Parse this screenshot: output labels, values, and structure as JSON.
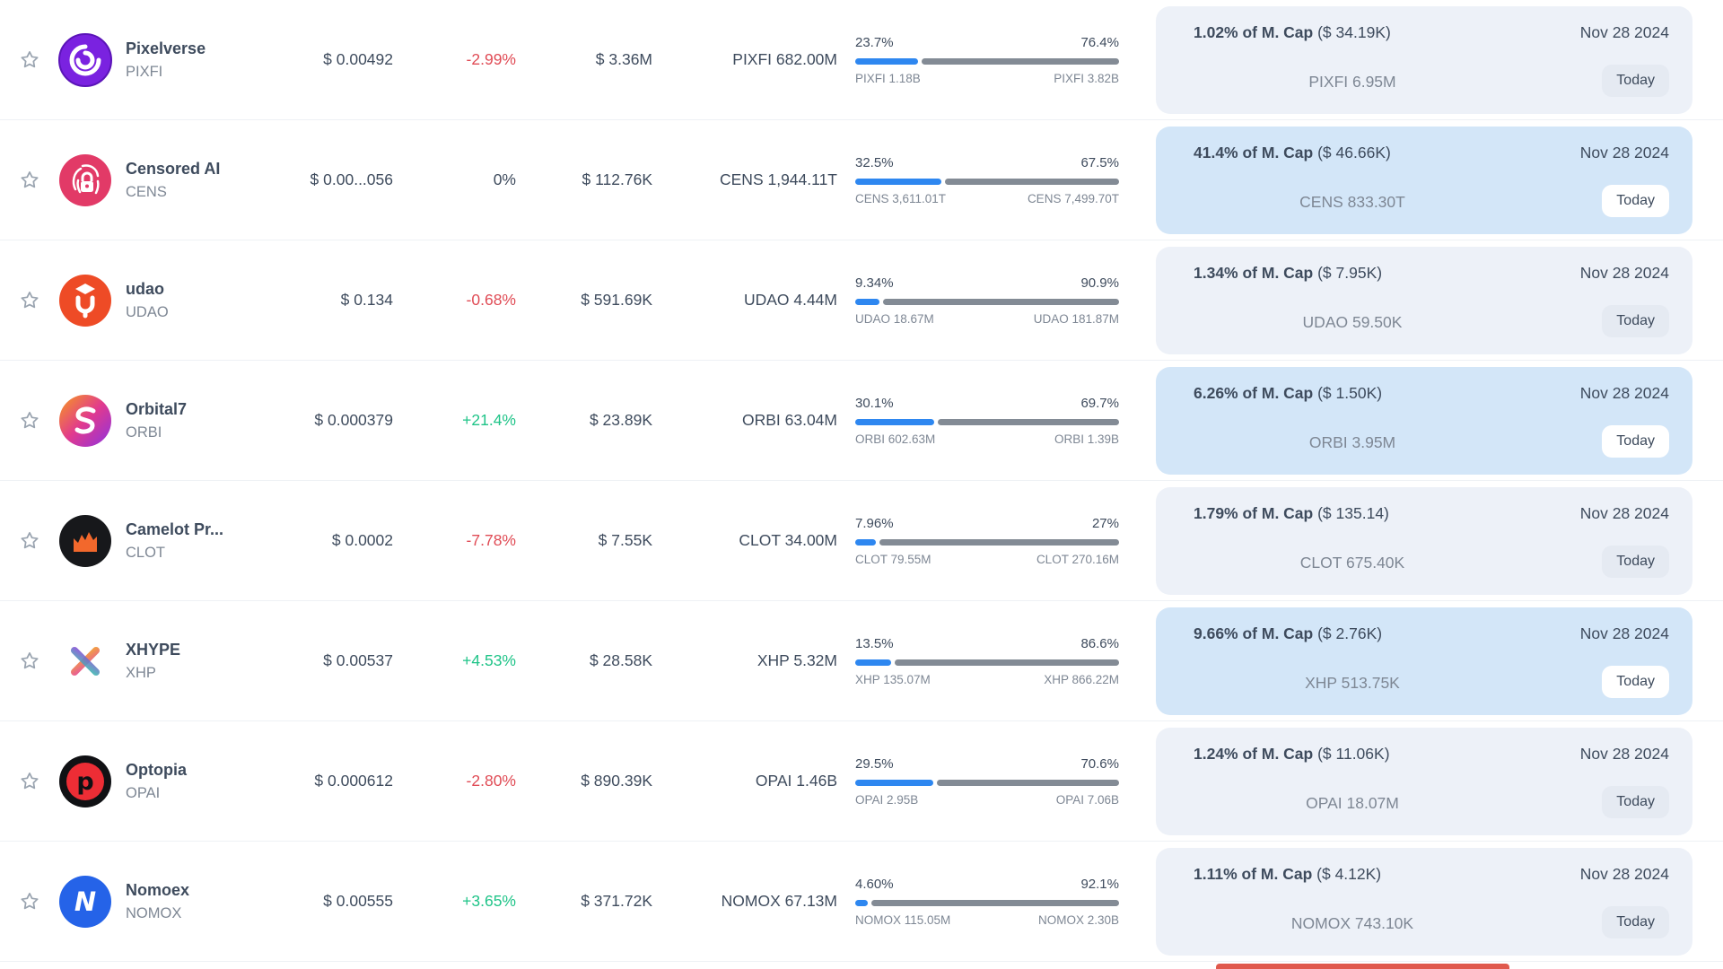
{
  "colors": {
    "accent_blue": "#2e87f0",
    "bar_grey": "#838b95",
    "positive": "#1fc488",
    "negative": "#e04b55",
    "neutral_text": "#3e4b5d",
    "secondary_text": "#7e8794",
    "highlight_light": "#edf1f8",
    "highlight_blue": "#d3e6f8",
    "badge_light": "#e5eaf2",
    "badge_on_blue": "#ffffff",
    "row_border": "#eef1f5",
    "clipped_red": "#e0594d"
  },
  "icons": {
    "star": "star-icon",
    "logos": [
      "pixelverse-spiral-icon",
      "censored-fingerprint-lock-icon",
      "udao-graduation-icon",
      "orbital7-swirl-icon",
      "camelot-castle-icon",
      "xhype-x-icon",
      "optopia-p-icon",
      "nomoex-n-icon"
    ]
  },
  "rows": [
    {
      "name": "Pixelverse",
      "symbol": "PIXFI",
      "logo": "pixelverse",
      "price": "$ 0.00492",
      "change": "-2.99%",
      "change_dir": "down",
      "volume": "$ 3.36M",
      "amount": "PIXFI 682.00M",
      "bar": {
        "left_pct": "23.7%",
        "right_pct": "76.4%",
        "left_label": "PIXFI 1.18B",
        "right_label": "PIXFI 3.82B",
        "fill": 23.7
      },
      "mcap": {
        "bold": "1.02% of M. Cap",
        "paren": "($ 34.19K)",
        "amount": "PIXFI 6.95M"
      },
      "date": "Nov 28 2024",
      "badge": "Today",
      "highlighted": false
    },
    {
      "name": "Censored AI",
      "symbol": "CENS",
      "logo": "censored",
      "price": "$ 0.00...056",
      "change": "0%",
      "change_dir": "flat",
      "volume": "$ 112.76K",
      "amount": "CENS 1,944.11T",
      "bar": {
        "left_pct": "32.5%",
        "right_pct": "67.5%",
        "left_label": "CENS 3,611.01T",
        "right_label": "CENS 7,499.70T",
        "fill": 32.5
      },
      "mcap": {
        "bold": "41.4% of M. Cap",
        "paren": "($ 46.66K)",
        "amount": "CENS 833.30T"
      },
      "date": "Nov 28 2024",
      "badge": "Today",
      "highlighted": true
    },
    {
      "name": "udao",
      "symbol": "UDAO",
      "logo": "udao",
      "price": "$ 0.134",
      "change": "-0.68%",
      "change_dir": "down",
      "volume": "$ 591.69K",
      "amount": "UDAO 4.44M",
      "bar": {
        "left_pct": "9.34%",
        "right_pct": "90.9%",
        "left_label": "UDAO 18.67M",
        "right_label": "UDAO 181.87M",
        "fill": 9.34
      },
      "mcap": {
        "bold": "1.34% of M. Cap",
        "paren": "($ 7.95K)",
        "amount": "UDAO 59.50K"
      },
      "date": "Nov 28 2024",
      "badge": "Today",
      "highlighted": false
    },
    {
      "name": "Orbital7",
      "symbol": "ORBI",
      "logo": "orbital7",
      "price": "$ 0.000379",
      "change": "+21.4%",
      "change_dir": "up",
      "volume": "$ 23.89K",
      "amount": "ORBI 63.04M",
      "bar": {
        "left_pct": "30.1%",
        "right_pct": "69.7%",
        "left_label": "ORBI 602.63M",
        "right_label": "ORBI 1.39B",
        "fill": 30.1
      },
      "mcap": {
        "bold": "6.26% of M. Cap",
        "paren": "($ 1.50K)",
        "amount": "ORBI 3.95M"
      },
      "date": "Nov 28 2024",
      "badge": "Today",
      "highlighted": true
    },
    {
      "name": "Camelot Pr...",
      "symbol": "CLOT",
      "logo": "camelot",
      "price": "$ 0.0002",
      "change": "-7.78%",
      "change_dir": "down",
      "volume": "$ 7.55K",
      "amount": "CLOT 34.00M",
      "bar": {
        "left_pct": "7.96%",
        "right_pct": "27%",
        "left_label": "CLOT 79.55M",
        "right_label": "CLOT 270.16M",
        "fill": 7.96
      },
      "mcap": {
        "bold": "1.79% of M. Cap",
        "paren": "($ 135.14)",
        "amount": "CLOT 675.40K"
      },
      "date": "Nov 28 2024",
      "badge": "Today",
      "highlighted": false
    },
    {
      "name": "XHYPE",
      "symbol": "XHP",
      "logo": "xhype",
      "price": "$ 0.00537",
      "change": "+4.53%",
      "change_dir": "up",
      "volume": "$ 28.58K",
      "amount": "XHP 5.32M",
      "bar": {
        "left_pct": "13.5%",
        "right_pct": "86.6%",
        "left_label": "XHP 135.07M",
        "right_label": "XHP 866.22M",
        "fill": 13.5
      },
      "mcap": {
        "bold": "9.66% of M. Cap",
        "paren": "($ 2.76K)",
        "amount": "XHP 513.75K"
      },
      "date": "Nov 28 2024",
      "badge": "Today",
      "highlighted": true
    },
    {
      "name": "Optopia",
      "symbol": "OPAI",
      "logo": "optopia",
      "price": "$ 0.000612",
      "change": "-2.80%",
      "change_dir": "down",
      "volume": "$ 890.39K",
      "amount": "OPAI 1.46B",
      "bar": {
        "left_pct": "29.5%",
        "right_pct": "70.6%",
        "left_label": "OPAI 2.95B",
        "right_label": "OPAI 7.06B",
        "fill": 29.5
      },
      "mcap": {
        "bold": "1.24% of M. Cap",
        "paren": "($ 11.06K)",
        "amount": "OPAI 18.07M"
      },
      "date": "Nov 28 2024",
      "badge": "Today",
      "highlighted": false
    },
    {
      "name": "Nomoex",
      "symbol": "NOMOX",
      "logo": "nomoex",
      "price": "$ 0.00555",
      "change": "+3.65%",
      "change_dir": "up",
      "volume": "$ 371.72K",
      "amount": "NOMOX 67.13M",
      "bar": {
        "left_pct": "4.60%",
        "right_pct": "92.1%",
        "left_label": "NOMOX 115.05M",
        "right_label": "NOMOX 2.30B",
        "fill": 4.6
      },
      "mcap": {
        "bold": "1.11% of M. Cap",
        "paren": "($ 4.12K)",
        "amount": "NOMOX 743.10K"
      },
      "date": "Nov 28 2024",
      "badge": "Today",
      "highlighted": false
    }
  ]
}
